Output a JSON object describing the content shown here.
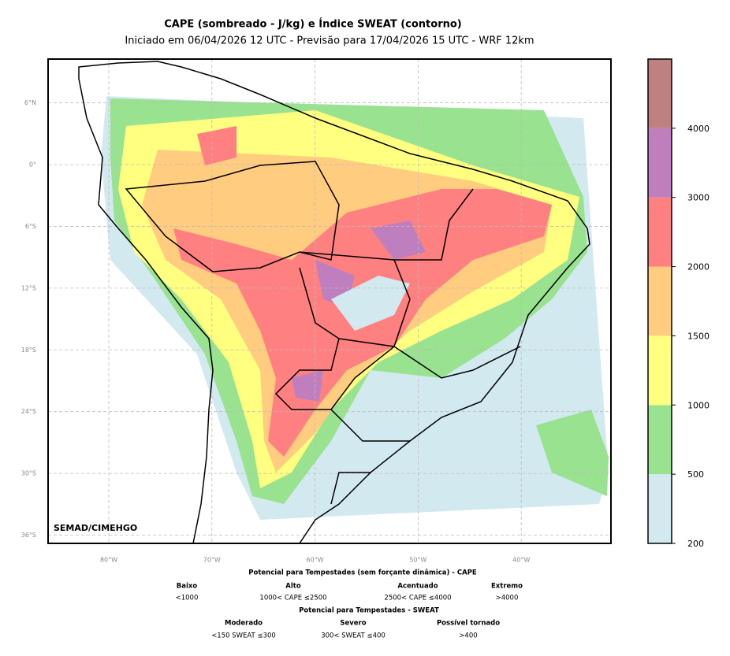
{
  "header": {
    "title": "CAPE (sombreado - J/kg) e Índice SWEAT (contorno)",
    "subtitle": "Iniciado em 06/04/2026 12 UTC - Previsão para 17/04/2026 15 UTC - WRF 12km"
  },
  "map": {
    "credit": "SEMAD/CIMEHGO",
    "lat_ticks": [
      {
        "value": 6,
        "label": "6°N"
      },
      {
        "value": 0,
        "label": "0°"
      },
      {
        "value": -6,
        "label": "6°S"
      },
      {
        "value": -12,
        "label": "12°S"
      },
      {
        "value": -18,
        "label": "18°S"
      },
      {
        "value": -24,
        "label": "24°S"
      },
      {
        "value": -30,
        "label": "30°S"
      },
      {
        "value": -36,
        "label": "36°S"
      }
    ],
    "lon_ticks": [
      {
        "value": -80,
        "label": "80°W"
      },
      {
        "value": -70,
        "label": "70°W"
      },
      {
        "value": -60,
        "label": "60°W"
      },
      {
        "value": -50,
        "label": "50°W"
      },
      {
        "value": -40,
        "label": "40°W"
      }
    ]
  },
  "colorbar": {
    "levels": [
      200,
      500,
      1000,
      1500,
      2000,
      3000,
      4000
    ],
    "colors": [
      "#d3e9f0",
      "#98e290",
      "#ffff80",
      "#ffcc80",
      "#ff8080",
      "#bf7fbf",
      "#bf8080"
    ]
  },
  "legend": {
    "cape": {
      "title": "Potencial para Tempestades (sem forçante dinâmica) - CAPE",
      "items": [
        {
          "name": "Baixo",
          "range": "<1000"
        },
        {
          "name": "Alto",
          "range": "1000< CAPE ≤2500"
        },
        {
          "name": "Acentuado",
          "range": "2500< CAPE ≤4000"
        },
        {
          "name": "Extremo",
          "range": ">4000"
        }
      ]
    },
    "sweat": {
      "title": "Potencial para Tempestades - SWEAT",
      "items": [
        {
          "name": "Moderado",
          "range": "<150 SWEAT ≤300"
        },
        {
          "name": "Severo",
          "range": "300< SWEAT ≤400"
        },
        {
          "name": "Possível tornado",
          "range": ">400"
        }
      ]
    }
  }
}
